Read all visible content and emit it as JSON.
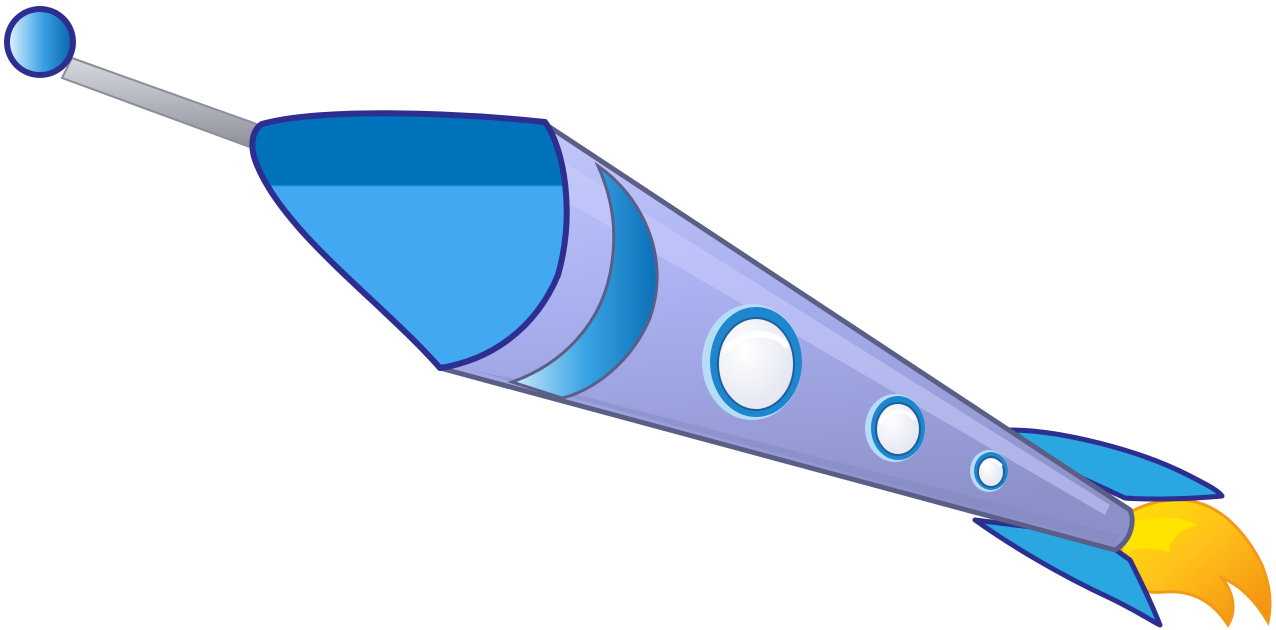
{
  "scene": {
    "subject": "rocket-icon",
    "colors": {
      "background": "#ffffff",
      "outline_dark": "#2c2f8f",
      "body_outline": "#5b5f86",
      "nose_light": "#42a8f2",
      "nose_dark": "#0072bc",
      "body_light": "#b9bff5",
      "body_mid": "#9fa6e6",
      "body_shadow": "#8a8fc4",
      "band_light": "#a9d9f6",
      "band_dark": "#1d86cf",
      "fin_fill": "#2aa6e0",
      "window_ring": "#2a8fd6",
      "window_glass": "#eceef6",
      "antenna": "#a9acb6",
      "antenna_ball_light": "#cfe9fb",
      "antenna_ball_dark": "#1d86cf",
      "flame_outer": "#f7a21b",
      "flame_inner": "#ffe400"
    }
  }
}
